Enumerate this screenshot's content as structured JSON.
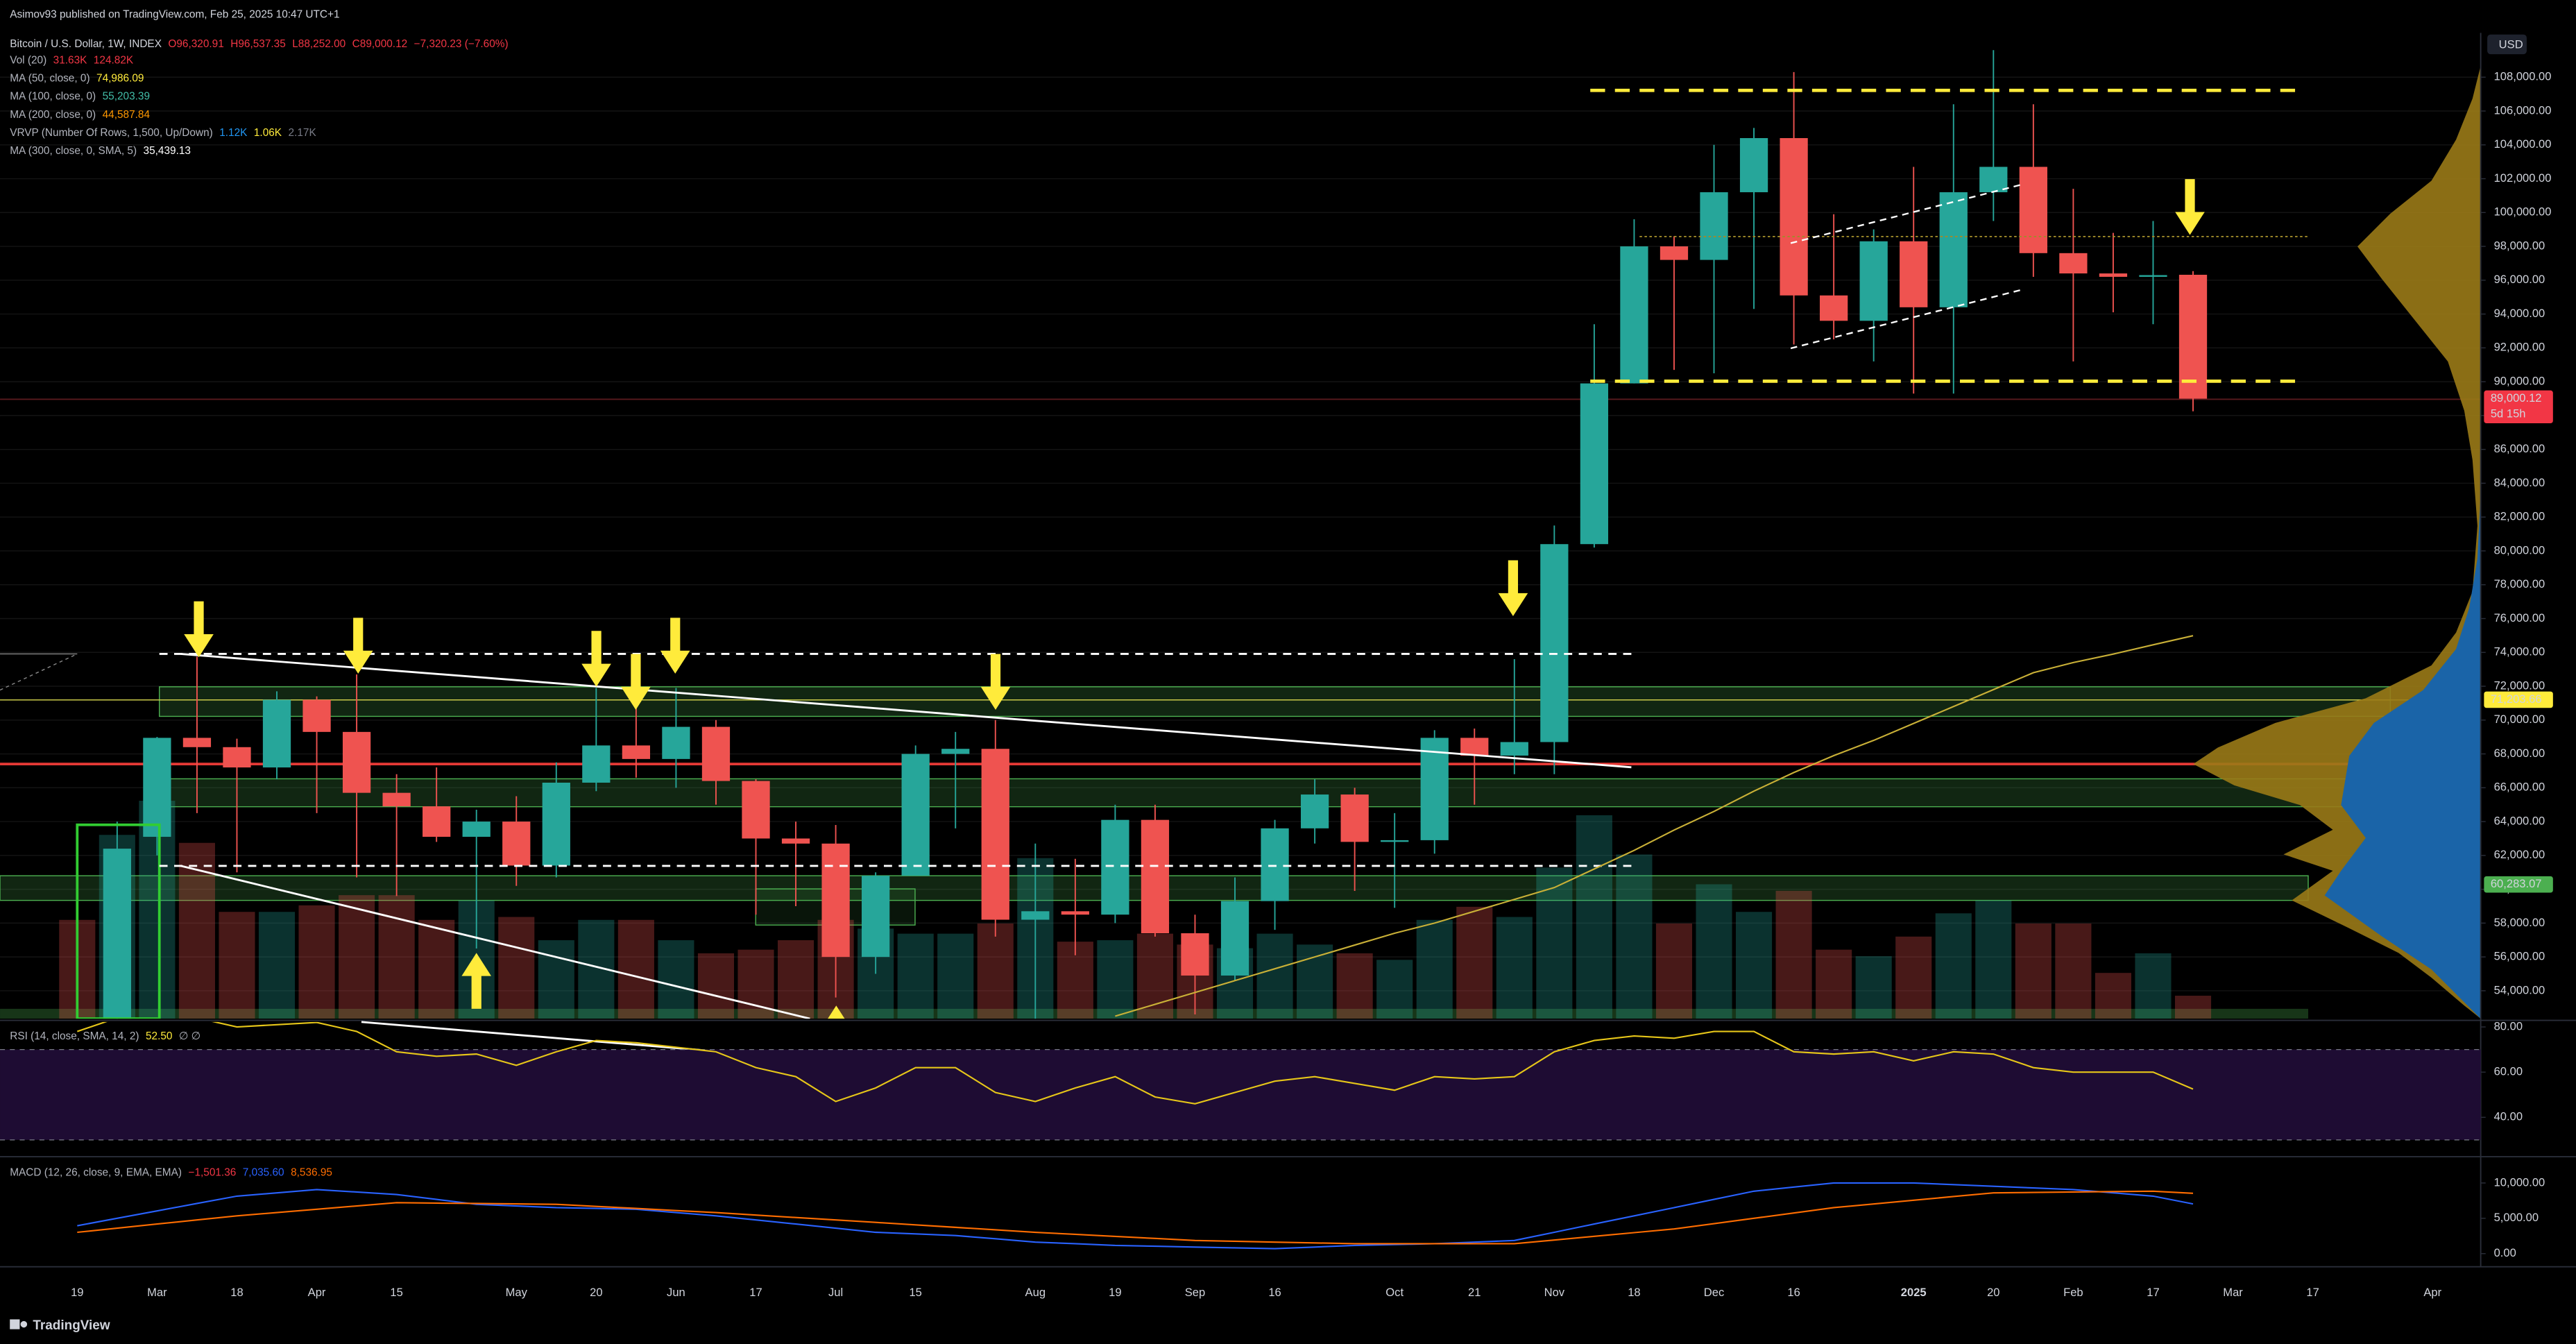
{
  "header": {
    "published": "Asimov93 published on TradingView.com, Feb 25, 2025 10:47 UTC+1"
  },
  "footer": {
    "brand": "TradingView"
  },
  "chart_data": [
    {
      "type": "candlestick",
      "title": "Bitcoin / U.S. Dollar, 1W, INDEX",
      "ohlc": [
        "O96,320.91",
        "H96,537.35",
        "L88,252.00",
        "C89,000.12",
        "−7,320.23 (−7.60%)"
      ],
      "currency": "USD",
      "up_color": "#26a69a",
      "down_color": "#ef5350",
      "categories": [
        "19",
        null,
        "Mar",
        null,
        "18",
        null,
        "Apr",
        null,
        "15",
        null,
        null,
        "May",
        null,
        "20",
        null,
        "Jun",
        null,
        "17",
        null,
        "Jul",
        null,
        "15",
        null,
        null,
        "Aug",
        null,
        "19",
        null,
        "Sep",
        null,
        "16",
        null,
        null,
        "Oct",
        null,
        "21",
        null,
        "Nov",
        null,
        "18",
        null,
        "Dec",
        null,
        "16",
        null,
        null,
        "2025",
        null,
        "20",
        null,
        "Feb",
        null,
        "17",
        null,
        "Mar",
        null,
        "17",
        null,
        null,
        "Apr"
      ],
      "open": [
        null,
        51700,
        63100,
        68950,
        68400,
        67200,
        71200,
        69300,
        65700,
        64900,
        63100,
        64000,
        61400,
        66300,
        68500,
        67700,
        69600,
        66400,
        63000,
        62700,
        56000,
        60800,
        68000,
        68300,
        58200,
        58700,
        58500,
        64100,
        57400,
        54900,
        59300,
        63600,
        65600,
        62800,
        62900,
        68950,
        67900,
        68700,
        80400,
        89900,
        98000,
        97200,
        101200,
        104400,
        95100,
        93600,
        98300,
        94400,
        101200,
        102700,
        97600,
        96400,
        96200,
        96320.91,
        null,
        null,
        null,
        null,
        null,
        null
      ],
      "high": [
        null,
        64000,
        69000,
        73750,
        68900,
        71700,
        71400,
        72700,
        66800,
        67200,
        64700,
        65500,
        67500,
        71900,
        71000,
        71900,
        70000,
        66500,
        64000,
        63800,
        61000,
        68500,
        69300,
        70000,
        62700,
        61800,
        65000,
        65000,
        58500,
        60700,
        64100,
        66500,
        66000,
        64500,
        69400,
        69500,
        73600,
        81500,
        93400,
        99600,
        98600,
        104000,
        105000,
        108300,
        99900,
        99000,
        102700,
        106400,
        109600,
        106400,
        101400,
        98800,
        99500,
        96537.35,
        null,
        null,
        null,
        null,
        null,
        null
      ],
      "low": [
        null,
        50900,
        62000,
        64500,
        61000,
        66500,
        64500,
        60700,
        59600,
        62800,
        56500,
        60200,
        60700,
        65800,
        66600,
        66000,
        65000,
        58500,
        59000,
        53600,
        55000,
        60800,
        63600,
        57200,
        49000,
        56100,
        58000,
        57200,
        52600,
        54600,
        57600,
        62700,
        59900,
        58900,
        62100,
        65000,
        66800,
        66800,
        80200,
        89900,
        90700,
        90500,
        94300,
        92200,
        92500,
        91200,
        89300,
        89300,
        99500,
        96200,
        91200,
        94100,
        93400,
        88252,
        null,
        null,
        null,
        null,
        null,
        null
      ],
      "close": [
        null,
        62400,
        68950,
        68400,
        67200,
        71200,
        69300,
        65700,
        64900,
        63100,
        64000,
        61400,
        66300,
        68500,
        67700,
        69600,
        66400,
        63000,
        62700,
        56000,
        60800,
        68000,
        68300,
        58200,
        58700,
        58500,
        64100,
        57400,
        54900,
        59300,
        63600,
        65600,
        62800,
        62900,
        68950,
        67900,
        68700,
        80400,
        89900,
        98000,
        97200,
        101200,
        104400,
        95100,
        93600,
        98300,
        94400,
        101200,
        102700,
        97600,
        96400,
        96200,
        96300,
        89000.12,
        null,
        null,
        null,
        null,
        null,
        null
      ],
      "ylim": [
        52350,
        110620
      ],
      "yticks": [
        {
          "value": 54000,
          "label": "54,000.00"
        },
        {
          "value": 56000,
          "label": "56,000.00"
        },
        {
          "value": 58000,
          "label": "58,000.00"
        },
        {
          "value": 60000,
          "label": "60,000.00"
        },
        {
          "value": 62000,
          "label": "62,000.00"
        },
        {
          "value": 64000,
          "label": "64,000.00"
        },
        {
          "value": 66000,
          "label": "66,000.00"
        },
        {
          "value": 68000,
          "label": "68,000.00"
        },
        {
          "value": 70000,
          "label": "70,000.00"
        },
        {
          "value": 72000,
          "label": "72,000.00"
        },
        {
          "value": 74000,
          "label": "74,000.00"
        },
        {
          "value": 76000,
          "label": "76,000.00"
        },
        {
          "value": 78000,
          "label": "78,000.00"
        },
        {
          "value": 80000,
          "label": "80,000.00"
        },
        {
          "value": 82000,
          "label": "82,000.00"
        },
        {
          "value": 84000,
          "label": "84,000.00"
        },
        {
          "value": 86000,
          "label": "86,000.00"
        },
        {
          "value": 88000,
          "label": "88,000.00"
        },
        {
          "value": 90000,
          "label": "90,000.00"
        },
        {
          "value": 92000,
          "label": "92,000.00"
        },
        {
          "value": 94000,
          "label": "94,000.00"
        },
        {
          "value": 96000,
          "label": "96,000.00"
        },
        {
          "value": 98000,
          "label": "98,000.00"
        },
        {
          "value": 100000,
          "label": "100,000.00"
        },
        {
          "value": 102000,
          "label": "102,000.00"
        },
        {
          "value": 104000,
          "label": "104,000.00"
        },
        {
          "value": 106000,
          "label": "106,000.00"
        },
        {
          "value": 108000,
          "label": "108,000.00"
        }
      ],
      "grid": true,
      "price_tags": [
        {
          "value": 89000.12,
          "label": "89,000.12",
          "sub": "5d 15h",
          "color": "#f23645",
          "text_color": "#ffffff"
        },
        {
          "value": 71203.66,
          "label": "71,203.66",
          "color": "#ffeb3b",
          "text_color": "#000000"
        },
        {
          "value": 60283.07,
          "label": "60,283.07",
          "color": "#4caf50",
          "text_color": "#000000"
        }
      ],
      "volume": {
        "ylim": [
          0,
          294
        ],
        "opacity": 0.3,
        "values": [
          136,
          253,
          300,
          242,
          147,
          147,
          156,
          170,
          170,
          136,
          163,
          140,
          108,
          136,
          136,
          108,
          90,
          95,
          108,
          136,
          124,
          117,
          117,
          131,
          221,
          106,
          108,
          117,
          102,
          97,
          117,
          102,
          90,
          81,
          136,
          154,
          140,
          208,
          280,
          226,
          131,
          185,
          147,
          176,
          95,
          86,
          113,
          145,
          163,
          131,
          131,
          63,
          90,
          31.63,
          null,
          null,
          null,
          null,
          null,
          null
        ]
      },
      "ma50": {
        "color": "#c9b037",
        "values": [
          null,
          null,
          null,
          null,
          null,
          null,
          null,
          null,
          null,
          null,
          null,
          null,
          null,
          null,
          null,
          null,
          null,
          null,
          null,
          null,
          null,
          null,
          null,
          null,
          null,
          null,
          52500,
          53200,
          53900,
          54600,
          55300,
          56000,
          56700,
          57400,
          58000,
          58700,
          59400,
          60100,
          61200,
          62300,
          63500,
          64600,
          65800,
          66900,
          67900,
          68800,
          69800,
          70800,
          71800,
          72800,
          73400,
          73900,
          74450,
          74986.09,
          null,
          null,
          null,
          null,
          null,
          null
        ]
      },
      "legend": [
        {
          "name": "Vol (20)",
          "values": [
            "31.63K",
            "124.82K"
          ],
          "colors": [
            "#f23645",
            "#f23645"
          ]
        },
        {
          "name": "MA (50, close, 0)",
          "values": [
            "74,986.09"
          ],
          "colors": [
            "#ffeb3b"
          ]
        },
        {
          "name": "MA (100, close, 0)",
          "values": [
            "55,203.39"
          ],
          "colors": [
            "#42bda8"
          ]
        },
        {
          "name": "MA (200, close, 0)",
          "values": [
            "44,587.84"
          ],
          "colors": [
            "#ff9800"
          ]
        },
        {
          "name": "VRVP (Number Of Rows, 1,500, Up/Down)",
          "values": [
            "1.12K",
            "1.06K",
            "2.17K"
          ],
          "colors": [
            "#2196f3",
            "#ffeb3b",
            "#787b86"
          ]
        },
        {
          "name": "MA (300, close, 0, SMA, 5)",
          "values": [
            "35,439.13"
          ],
          "colors": [
            "#ffffff"
          ]
        }
      ]
    },
    {
      "type": "line",
      "title": "RSI (14, close, SMA, 14, 2)",
      "readouts": [
        "52.50",
        "∅ ∅"
      ],
      "readout_colors": [
        "#ffeb3b",
        "#b2b5be"
      ],
      "ylim": [
        23.3,
        82.2
      ],
      "yticks": [
        {
          "value": 80,
          "label": "80.00"
        },
        {
          "value": 60,
          "label": "60.00"
        },
        {
          "value": 40,
          "label": "40.00"
        }
      ],
      "band": [
        30,
        70
      ],
      "band_color": "#1e0c33",
      "series": [
        {
          "color": "#e6c619",
          "values": [
            78,
            84,
            85,
            84,
            80,
            81,
            82,
            78,
            69,
            67,
            68,
            63,
            69,
            74,
            73,
            71,
            69,
            62,
            58,
            47,
            53,
            62,
            62,
            51,
            47,
            53,
            58,
            49,
            46,
            51,
            56,
            58,
            55,
            52,
            58,
            57,
            58,
            69,
            74,
            76,
            75,
            78,
            78,
            69,
            68,
            69,
            65,
            69,
            68,
            62,
            60,
            60,
            60,
            52.5,
            null,
            null,
            null,
            null,
            null,
            null
          ]
        }
      ]
    },
    {
      "type": "line",
      "title": "MACD (12, 26, close, 9, EMA, EMA)",
      "readouts": [
        "−1,501.36",
        "7,035.60",
        "8,536.95"
      ],
      "readout_colors": [
        "#f23645",
        "#2962ff",
        "#ff6d00"
      ],
      "ylim": [
        -1630,
        13490
      ],
      "yticks": [
        {
          "value": 10000,
          "label": "10,000.00"
        },
        {
          "value": 5000,
          "label": "5,000.00"
        },
        {
          "value": 0,
          "label": "0.00"
        }
      ],
      "series": [
        {
          "color": "#2962ff",
          "values": [
            3950,
            5000,
            6050,
            7100,
            8140,
            8600,
            9070,
            8720,
            8370,
            7680,
            6980,
            6750,
            6510,
            6400,
            6280,
            5810,
            5350,
            4770,
            4190,
            3600,
            3020,
            2790,
            2560,
            2100,
            1630,
            1400,
            1160,
            1050,
            930,
            820,
            700,
            930,
            1160,
            1280,
            1400,
            1630,
            1860,
            3020,
            4190,
            5350,
            6510,
            7680,
            8840,
            9420,
            10000,
            10000,
            10000,
            9770,
            9530,
            9300,
            9070,
            8600,
            8140,
            7035.6,
            null,
            null,
            null,
            null,
            null,
            null
          ]
        },
        {
          "color": "#ff6d00",
          "values": [
            3020,
            3600,
            4190,
            4770,
            5350,
            5810,
            6280,
            6750,
            7210,
            7150,
            7100,
            7040,
            6980,
            6690,
            6400,
            6100,
            5810,
            5460,
            5110,
            4770,
            4420,
            4070,
            3720,
            3370,
            3020,
            2730,
            2440,
            2150,
            1860,
            1750,
            1630,
            1520,
            1400,
            1400,
            1400,
            1400,
            1400,
            1920,
            2450,
            2970,
            3490,
            4240,
            5000,
            5750,
            6510,
            7030,
            7560,
            8080,
            8600,
            8660,
            8720,
            8780,
            8840,
            8536.95,
            null,
            null,
            null,
            null,
            null,
            null
          ]
        }
      ]
    }
  ]
}
